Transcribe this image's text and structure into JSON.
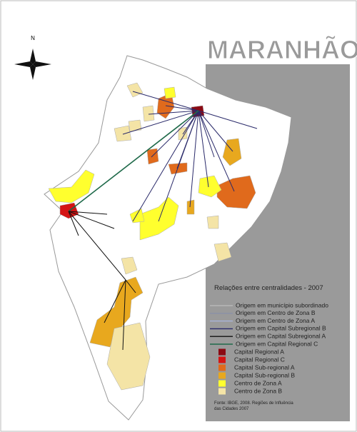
{
  "title": "MARANHÃO",
  "compass": "N",
  "legend": {
    "title": "Relações entre centralidades - 2007",
    "lines": [
      {
        "label": "Origem em município subordinado",
        "color": "#b8b8b8"
      },
      {
        "label": "Origem em Centro de Zona B",
        "color": "#8a90a8"
      },
      {
        "label": "Origem em Centro de Zona A",
        "color": "#a8b4d8"
      },
      {
        "label": "Origem em Capital Subregional B",
        "color": "#2a2a6a"
      },
      {
        "label": "Origem em Capital Subregional A",
        "color": "#101010"
      },
      {
        "label": "Origem em Capital Regional C",
        "color": "#1f6a4a"
      }
    ],
    "areas": [
      {
        "label": "Capital Regional A",
        "color": "#8b0a14"
      },
      {
        "label": "Capital Regional C",
        "color": "#d41414"
      },
      {
        "label": "Capital Sub-regional A",
        "color": "#e06a1c"
      },
      {
        "label": "Capital Sub-regional B",
        "color": "#e8a81e"
      },
      {
        "label": "Centro de Zona A",
        "color": "#ffff2e"
      },
      {
        "label": "Centro de Zona B",
        "color": "#f4e4a6"
      }
    ]
  },
  "source": [
    "Fonte: IBGE, 2008. Regiões de Influência",
    "das Cidades 2007"
  ]
}
